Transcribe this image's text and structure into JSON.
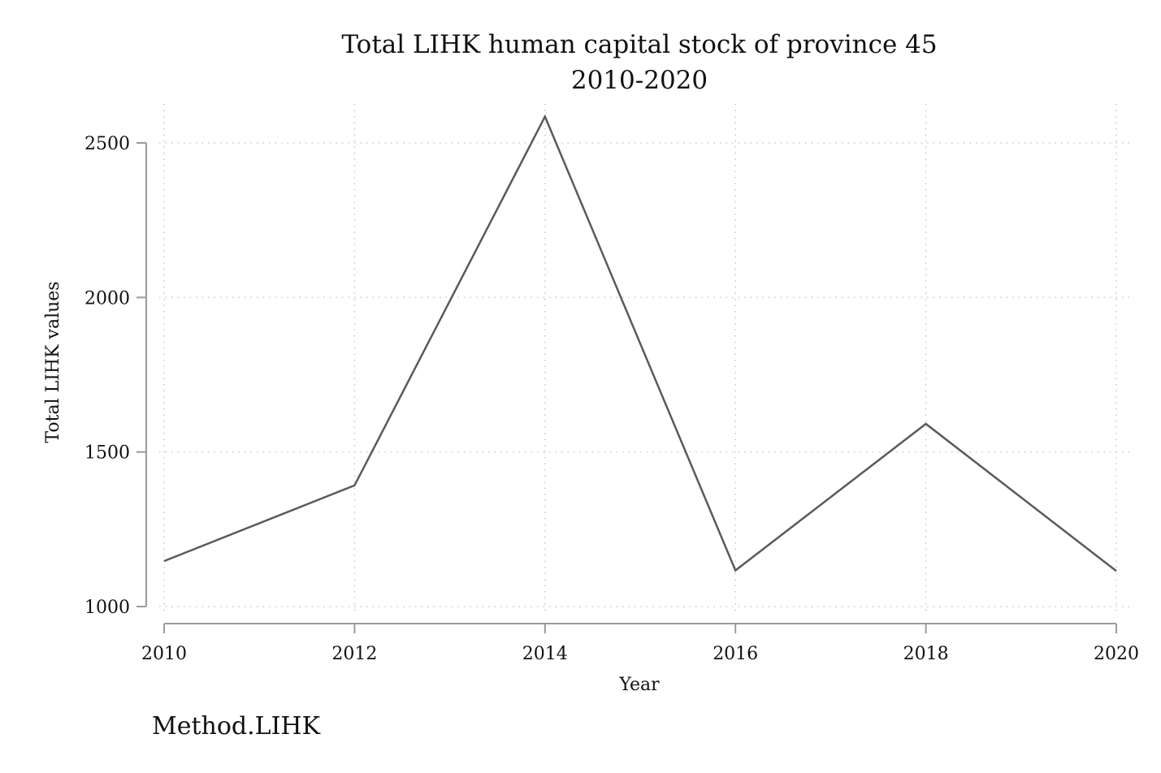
{
  "chart_data": {
    "type": "line",
    "title": "Total LIHK human capital stock of province 45",
    "subtitle": "2010-2020",
    "xlabel": "Year",
    "ylabel": "Total LIHK values",
    "note": "Method.LIHK",
    "x": [
      2010,
      2012,
      2014,
      2016,
      2018,
      2020
    ],
    "y": [
      1147,
      1392,
      2585,
      1117,
      1591,
      1115
    ],
    "xticks": [
      "2010",
      "2012",
      "2014",
      "2016",
      "2018",
      "2020"
    ],
    "yticks": [
      "1000",
      "1500",
      "2000",
      "2500"
    ],
    "xlim": [
      2010,
      2020
    ],
    "ylim": [
      1000,
      2500
    ],
    "grid": true,
    "line_color": "#5a5a5a"
  }
}
